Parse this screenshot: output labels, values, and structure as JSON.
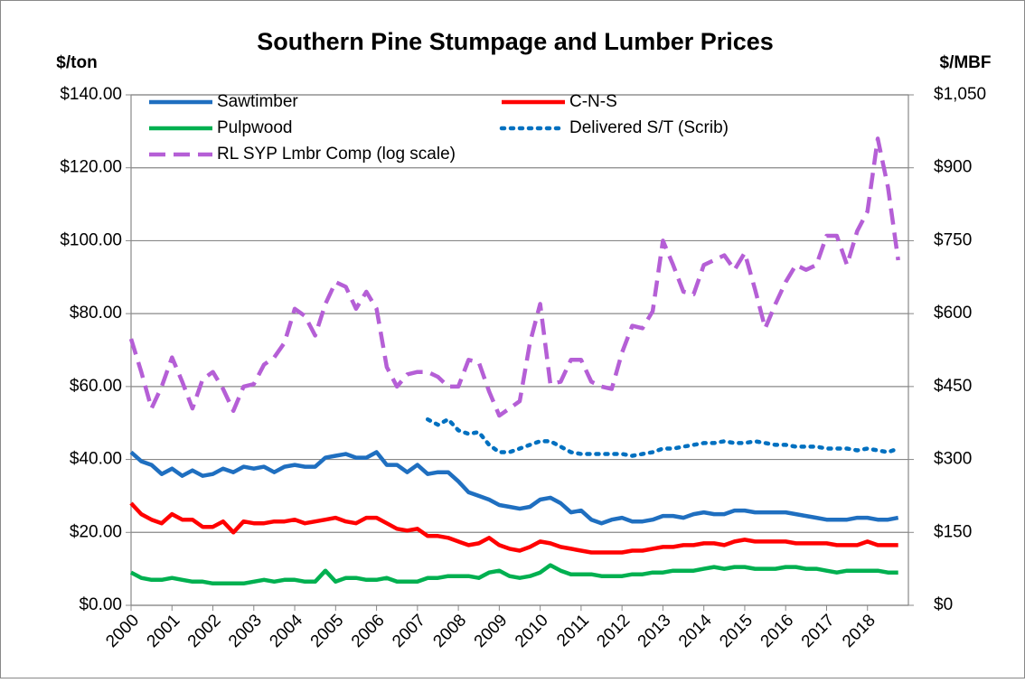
{
  "chart_data": {
    "type": "line",
    "title": "Southern Pine Stumpage and Lumber Prices",
    "y_label": "$/ton",
    "y2_label": "$/MBF",
    "x": [
      2000,
      2000.25,
      2000.5,
      2000.75,
      2001,
      2001.25,
      2001.5,
      2001.75,
      2002,
      2002.25,
      2002.5,
      2002.75,
      2003,
      2003.25,
      2003.5,
      2003.75,
      2004,
      2004.25,
      2004.5,
      2004.75,
      2005,
      2005.25,
      2005.5,
      2005.75,
      2006,
      2006.25,
      2006.5,
      2006.75,
      2007,
      2007.25,
      2007.5,
      2007.75,
      2008,
      2008.25,
      2008.5,
      2008.75,
      2009,
      2009.25,
      2009.5,
      2009.75,
      2010,
      2010.25,
      2010.5,
      2010.75,
      2011,
      2011.25,
      2011.5,
      2011.75,
      2012,
      2012.25,
      2012.5,
      2012.75,
      2013,
      2013.25,
      2013.5,
      2013.75,
      2014,
      2014.25,
      2014.5,
      2014.75,
      2015,
      2015.25,
      2015.5,
      2015.75,
      2016,
      2016.25,
      2016.5,
      2016.75,
      2017,
      2017.25,
      2017.5,
      2017.75,
      2018,
      2018.25,
      2018.5,
      2018.75
    ],
    "xlim": [
      2000,
      2019
    ],
    "xticks": [
      2000,
      2001,
      2002,
      2003,
      2004,
      2005,
      2006,
      2007,
      2008,
      2009,
      2010,
      2011,
      2012,
      2013,
      2014,
      2015,
      2016,
      2017,
      2018
    ],
    "ylim": [
      0,
      140
    ],
    "yticks": [
      {
        "value": 0,
        "label": "$0.00"
      },
      {
        "value": 20,
        "label": "$20.00"
      },
      {
        "value": 40,
        "label": "$40.00"
      },
      {
        "value": 60,
        "label": "$60.00"
      },
      {
        "value": 80,
        "label": "$80.00"
      },
      {
        "value": 100,
        "label": "$100.00"
      },
      {
        "value": 120,
        "label": "$120.00"
      },
      {
        "value": 140,
        "label": "$140.00"
      }
    ],
    "y2lim": [
      0,
      1050
    ],
    "y2ticks": [
      {
        "value": 0,
        "label": "$0"
      },
      {
        "value": 150,
        "label": "$150"
      },
      {
        "value": 300,
        "label": "$300"
      },
      {
        "value": 450,
        "label": "$450"
      },
      {
        "value": 600,
        "label": "$600"
      },
      {
        "value": 750,
        "label": "$750"
      },
      {
        "value": 900,
        "label": "$900"
      },
      {
        "value": 1050,
        "label": "$1,050"
      }
    ],
    "grid": true,
    "series": [
      {
        "name": "Sawtimber",
        "color": "#1f6fc0",
        "style": "solid",
        "values": [
          42,
          39.5,
          38.5,
          36,
          37.5,
          35.5,
          37,
          35.5,
          36,
          37.5,
          36.5,
          38,
          37.5,
          38,
          36.5,
          38,
          38.5,
          38,
          38,
          40.5,
          41,
          41.5,
          40.5,
          40.5,
          42,
          38.5,
          38.5,
          36.5,
          38.5,
          36,
          36.5,
          36.5,
          34,
          31,
          30,
          29,
          27.5,
          27,
          26.5,
          27,
          29,
          29.5,
          28,
          25.5,
          26,
          23.5,
          22.5,
          23.5,
          24,
          23,
          23,
          23.5,
          24.5,
          24.5,
          24,
          25,
          25.5,
          25,
          25,
          26,
          26,
          25.5,
          25.5,
          25.5,
          25.5,
          25,
          24.5,
          24,
          23.5,
          23.5,
          23.5,
          24,
          24,
          23.5,
          23.5,
          24
        ]
      },
      {
        "name": "C-N-S",
        "color": "#ff0000",
        "style": "solid",
        "values": [
          28,
          25,
          23.5,
          22.5,
          25,
          23.5,
          23.5,
          21.5,
          21.5,
          23,
          20,
          23,
          22.5,
          22.5,
          23,
          23,
          23.5,
          22.5,
          23,
          23.5,
          24,
          23,
          22.5,
          24,
          24,
          22.5,
          21,
          20.5,
          21,
          19,
          19,
          18.5,
          17.5,
          16.5,
          17,
          18.5,
          16.5,
          15.5,
          15,
          16,
          17.5,
          17,
          16,
          15.5,
          15,
          14.5,
          14.5,
          14.5,
          14.5,
          15,
          15,
          15.5,
          16,
          16,
          16.5,
          16.5,
          17,
          17,
          16.5,
          17.5,
          18,
          17.5,
          17.5,
          17.5,
          17.5,
          17,
          17,
          17,
          17,
          16.5,
          16.5,
          16.5,
          17.5,
          16.5,
          16.5,
          16.5
        ]
      },
      {
        "name": "Pulpwood",
        "color": "#00b050",
        "style": "solid",
        "values": [
          9,
          7.5,
          7,
          7,
          7.5,
          7,
          6.5,
          6.5,
          6,
          6,
          6,
          6,
          6.5,
          7,
          6.5,
          7,
          7,
          6.5,
          6.5,
          9.5,
          6.5,
          7.5,
          7.5,
          7,
          7,
          7.5,
          6.5,
          6.5,
          6.5,
          7.5,
          7.5,
          8,
          8,
          8,
          7.5,
          9,
          9.5,
          8,
          7.5,
          8,
          9,
          11,
          9.5,
          8.5,
          8.5,
          8.5,
          8,
          8,
          8,
          8.5,
          8.5,
          9,
          9,
          9.5,
          9.5,
          9.5,
          10,
          10.5,
          10,
          10.5,
          10.5,
          10,
          10,
          10,
          10.5,
          10.5,
          10,
          10,
          9.5,
          9,
          9.5,
          9.5,
          9.5,
          9.5,
          9,
          9
        ]
      },
      {
        "name": "Delivered S/T (Scrib)",
        "color": "#0070c0",
        "style": "dotted",
        "values": [
          null,
          null,
          null,
          null,
          null,
          null,
          null,
          null,
          null,
          null,
          null,
          null,
          null,
          null,
          null,
          null,
          null,
          null,
          null,
          null,
          null,
          null,
          null,
          null,
          null,
          null,
          null,
          null,
          null,
          51,
          49.5,
          51,
          48,
          47,
          47.5,
          44,
          42,
          42,
          43,
          44,
          45,
          45,
          43.5,
          42,
          41.5,
          41.5,
          41.5,
          41.5,
          41.5,
          41,
          41.5,
          42,
          43,
          43,
          43.5,
          44,
          44.5,
          44.5,
          45,
          44.5,
          44.5,
          45,
          44.5,
          44,
          44,
          43.5,
          43.5,
          43.5,
          43,
          43,
          43,
          42.5,
          43,
          42.5,
          42,
          43
        ]
      },
      {
        "name": "RL SYP Lmbr Comp (log scale)",
        "color": "#b55fd6",
        "style": "dashed",
        "axis": "y2",
        "values": [
          548,
          480,
          405,
          450,
          510,
          460,
          405,
          465,
          480,
          445,
          400,
          450,
          455,
          495,
          510,
          540,
          610,
          595,
          555,
          620,
          665,
          655,
          610,
          645,
          610,
          490,
          450,
          475,
          480,
          480,
          470,
          450,
          450,
          505,
          500,
          440,
          390,
          405,
          420,
          540,
          620,
          455,
          460,
          505,
          505,
          460,
          450,
          445,
          520,
          575,
          570,
          605,
          750,
          700,
          645,
          640,
          700,
          710,
          720,
          690,
          725,
          650,
          570,
          620,
          665,
          700,
          690,
          700,
          760,
          760,
          700,
          770,
          810,
          960,
          860,
          710
        ]
      }
    ]
  }
}
